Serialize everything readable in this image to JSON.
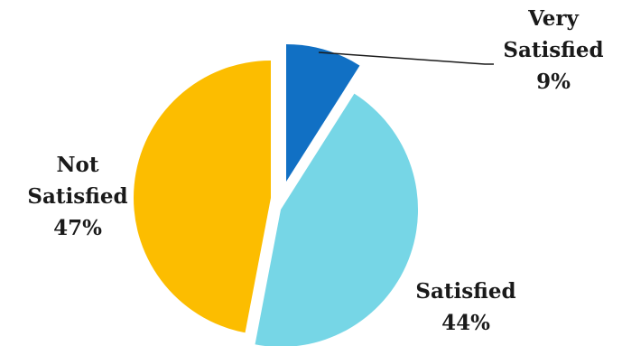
{
  "chart_data": {
    "type": "pie",
    "title": "",
    "slices": [
      {
        "label_lines": [
          "Very",
          "Satisfied"
        ],
        "percent_label": "9%",
        "value": 9,
        "color": "#1170c4"
      },
      {
        "label_lines": [
          "Satisfied"
        ],
        "percent_label": "44%",
        "value": 44,
        "color": "#76d6e6"
      },
      {
        "label_lines": [
          "Not",
          "Satisfied"
        ],
        "percent_label": "47%",
        "value": 47,
        "color": "#fcbd00"
      }
    ],
    "exploded": true,
    "start_angle": "12 o'clock",
    "direction": "clockwise",
    "legend": "none",
    "leader_line": "Very Satisfied"
  }
}
